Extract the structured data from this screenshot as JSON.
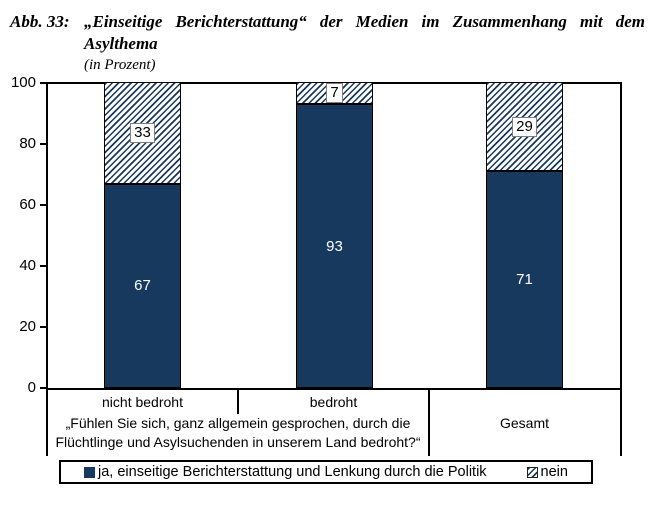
{
  "figure": {
    "title_label": "Abb. 33:",
    "title_line1": "„Einseitige Berichterstattung“ der Medien im Zusammenhang mit dem",
    "title_line2": "Asylthema",
    "subtitle": "(in Prozent)"
  },
  "chart_data": {
    "type": "bar",
    "subtype": "stacked-column-100",
    "title": "Abb. 33: „Einseitige Berichterstattung“ der Medien im Zusammenhang mit dem Asylthema",
    "subtitle": "(in Prozent)",
    "categories": [
      "nicht bedroht",
      "bedroht",
      "Gesamt"
    ],
    "series": [
      {
        "name": "ja, einseitige Berichterstattung und Lenkung durch die Politik",
        "values": [
          67,
          93,
          71
        ],
        "style": "solid",
        "color": "#17395e"
      },
      {
        "name": "nein",
        "values": [
          33,
          7,
          29
        ],
        "style": "hatched",
        "color": "#17395e"
      }
    ],
    "ylim": [
      0,
      100
    ],
    "yticks": [
      0,
      20,
      40,
      60,
      80,
      100
    ],
    "grid": false,
    "legend_position": "bottom",
    "x_note": "„Fühlen Sie sich, ganz allgemein gesprochen, durch die Flüchtlinge und Asylsuchenden in unserem Land bedroht?“",
    "x_note_applies_to": [
      "nicht bedroht",
      "bedroht"
    ]
  },
  "colors": {
    "bar_fill": "#17395e",
    "axis": "#000000",
    "hatch_line": "#17395e",
    "value_box_border": "#7f7f7f",
    "value_text_on_bar": "#ffffff"
  }
}
